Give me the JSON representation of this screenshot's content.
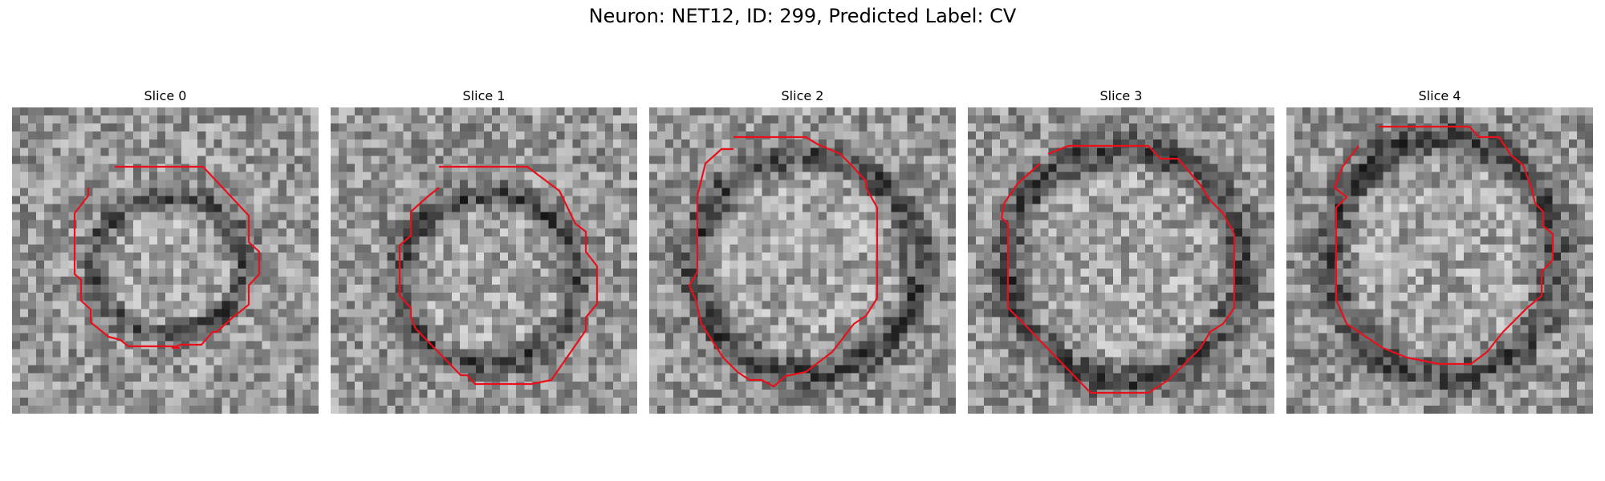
{
  "figure": {
    "title": "Neuron: NET12, ID: 299, Predicted Label: CV"
  },
  "slices": [
    {
      "title": "Slice 0"
    },
    {
      "title": "Slice 1"
    },
    {
      "title": "Slice 2"
    },
    {
      "title": "Slice 3"
    },
    {
      "title": "Slice 4"
    }
  ],
  "colors": {
    "contour": "#e8111b",
    "colormap": "gray"
  }
}
